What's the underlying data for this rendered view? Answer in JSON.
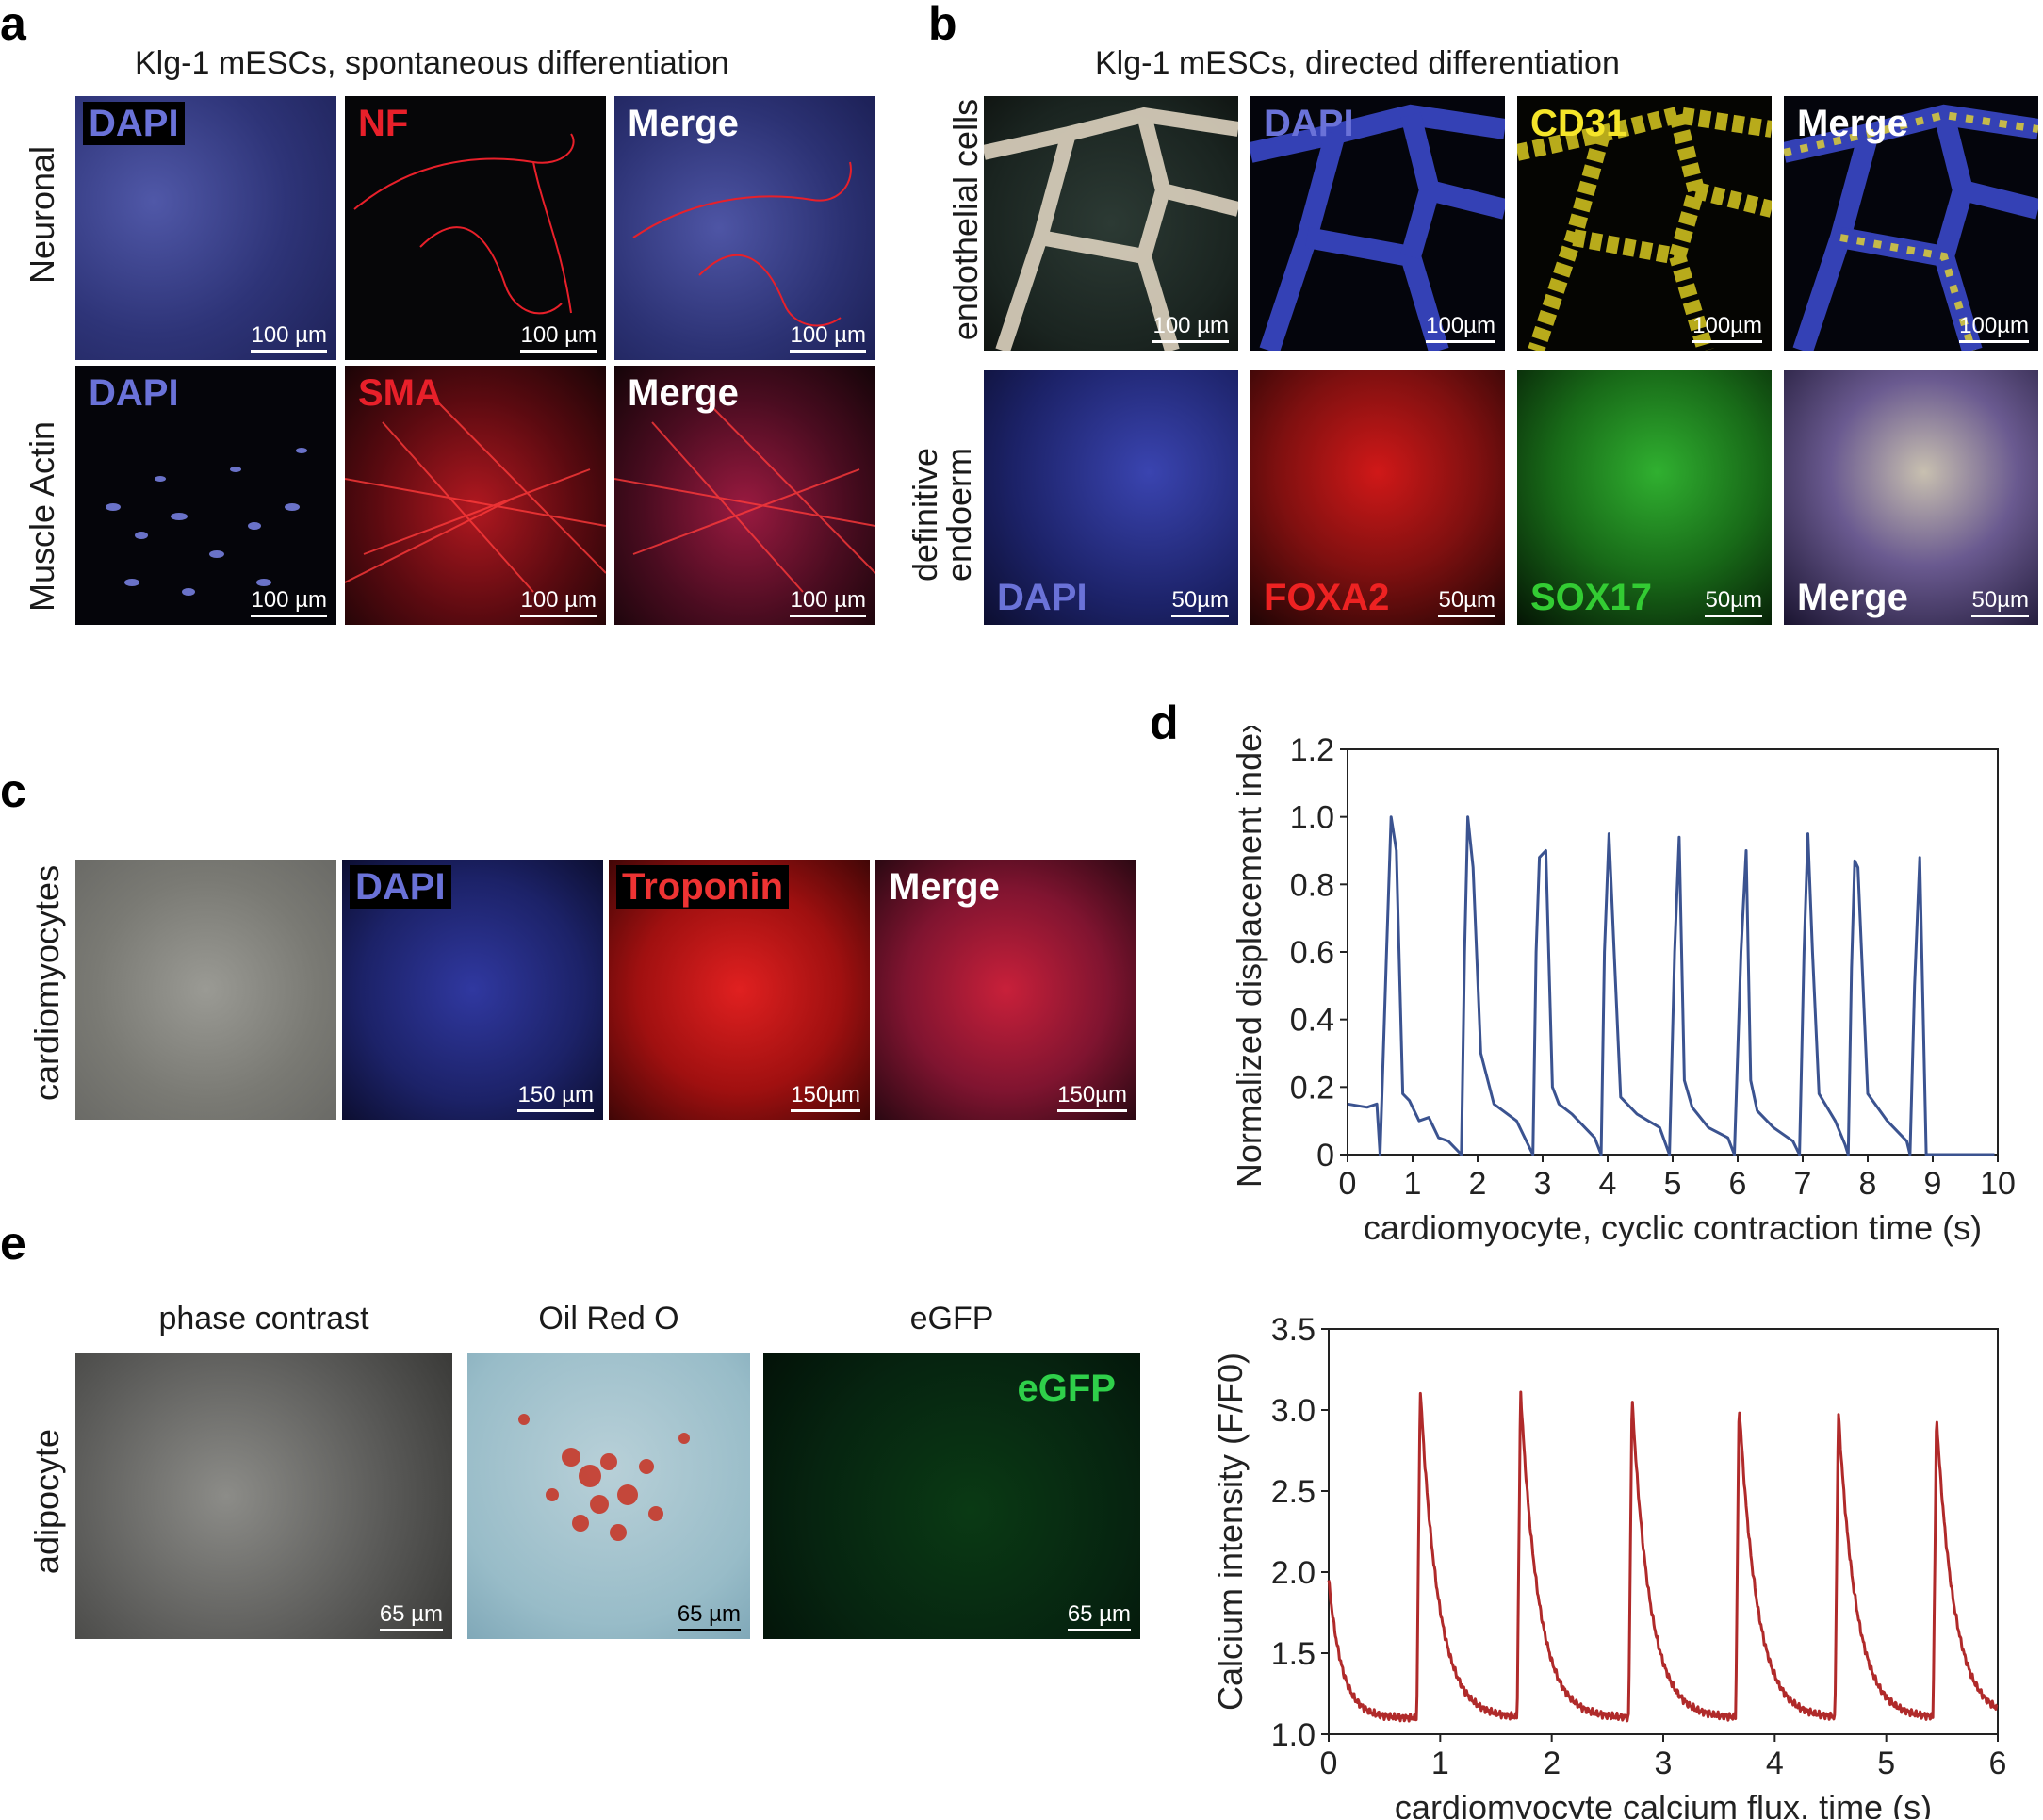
{
  "panels": {
    "a": {
      "label": "a",
      "title": "Klg-1 mESCs, spontaneous differentiation",
      "rows": [
        {
          "label": "Neuronal",
          "tiles": [
            {
              "channel": "DAPI",
              "scale": "100 µm"
            },
            {
              "channel": "NF",
              "scale": "100 µm"
            },
            {
              "channel": "Merge",
              "scale": "100 µm"
            }
          ]
        },
        {
          "label": "Muscle Actin",
          "tiles": [
            {
              "channel": "DAPI",
              "scale": "100 µm"
            },
            {
              "channel": "SMA",
              "scale": "100 µm"
            },
            {
              "channel": "Merge",
              "scale": "100 µm"
            }
          ]
        }
      ]
    },
    "b": {
      "label": "b",
      "title": "Klg-1 mESCs, directed differentiation",
      "rows": [
        {
          "label_line1": "endothelial cells",
          "tiles": [
            {
              "channel": "",
              "scale": "100 µm"
            },
            {
              "channel": "DAPI",
              "scale": "100µm"
            },
            {
              "channel": "CD31",
              "scale": "100µm"
            },
            {
              "channel": "Merge",
              "scale": "100µm"
            }
          ]
        },
        {
          "label_line1": "definitive",
          "label_line2": "endoerm",
          "tiles": [
            {
              "channel": "DAPI",
              "scale": "50µm"
            },
            {
              "channel": "FOXA2",
              "scale": "50µm"
            },
            {
              "channel": "SOX17",
              "scale": "50µm"
            },
            {
              "channel": "Merge",
              "scale": "50µm"
            }
          ]
        }
      ]
    },
    "c": {
      "label": "c",
      "row_label": "cardiomyocytes",
      "tiles": [
        {
          "channel": "",
          "scale": ""
        },
        {
          "channel": "DAPI",
          "scale": "150 µm"
        },
        {
          "channel": "Troponin",
          "scale": "150µm"
        },
        {
          "channel": "Merge",
          "scale": "150µm"
        }
      ]
    },
    "d": {
      "label": "d"
    },
    "e": {
      "label": "e",
      "row_label": "adipocyte",
      "columns": [
        {
          "title": "phase contrast",
          "scale": "65 µm"
        },
        {
          "title": "Oil Red O",
          "scale": "65 µm"
        },
        {
          "title": "eGFP",
          "channel": "eGFP",
          "scale": "65 µm"
        }
      ]
    }
  },
  "colors": {
    "dapi": "#6a72d8",
    "nf": "#e8202a",
    "sma": "#e8202a",
    "cd31": "#f5e52a",
    "foxa2": "#ee2222",
    "sox17": "#33cc33",
    "egfp": "#2fd04a",
    "troponin": "#ee3333",
    "line_blue": "#3b5390",
    "line_red": "#b02a2a"
  },
  "chart_data": [
    {
      "type": "line",
      "title": "",
      "xlabel": "cardiomyocyte, cyclic contraction time (s)",
      "ylabel": "Normalized displacement index",
      "xlim": [
        0,
        10
      ],
      "ylim": [
        0,
        1.2
      ],
      "xticks": [
        "0",
        "1",
        "2",
        "3",
        "4",
        "5",
        "6",
        "7",
        "8",
        "9",
        "10"
      ],
      "yticks": [
        "0",
        "0.2",
        "0.4",
        "0.6",
        "0.8",
        "1.0",
        "1.2"
      ],
      "series": [
        {
          "x": [
            0.0,
            0.3,
            0.45,
            0.5,
            0.6,
            0.67,
            0.75,
            0.85,
            0.95,
            1.1,
            1.25,
            1.4,
            1.55,
            1.75,
            1.8,
            1.85,
            1.93,
            2.05,
            2.25,
            2.6,
            2.85,
            2.9,
            2.95,
            3.05,
            3.15,
            3.25,
            3.45,
            3.8,
            3.9,
            3.95,
            4.02,
            4.1,
            4.2,
            4.45,
            4.8,
            4.95,
            5.03,
            5.1,
            5.18,
            5.3,
            5.55,
            5.85,
            5.95,
            6.05,
            6.13,
            6.2,
            6.3,
            6.55,
            6.85,
            6.95,
            7.02,
            7.08,
            7.15,
            7.25,
            7.5,
            7.65,
            7.7,
            7.75,
            7.8,
            7.85,
            8.0,
            8.3,
            8.6,
            8.65,
            8.72,
            8.8,
            8.9,
            9.1,
            9.4,
            9.75,
            9.8,
            9.85,
            9.92,
            9.95
          ],
          "y": [
            0.15,
            0.14,
            0.15,
            0.0,
            0.6,
            1.0,
            0.9,
            0.18,
            0.16,
            0.1,
            0.11,
            0.05,
            0.04,
            0.0,
            0.6,
            1.0,
            0.85,
            0.3,
            0.15,
            0.1,
            0.0,
            0.6,
            0.88,
            0.9,
            0.2,
            0.15,
            0.12,
            0.05,
            0.0,
            0.6,
            0.95,
            0.6,
            0.17,
            0.12,
            0.08,
            0.0,
            0.6,
            0.94,
            0.22,
            0.14,
            0.08,
            0.05,
            0.0,
            0.6,
            0.9,
            0.22,
            0.13,
            0.08,
            0.04,
            0.0,
            0.6,
            0.95,
            0.6,
            0.18,
            0.1,
            0.03,
            0.0,
            0.55,
            0.87,
            0.85,
            0.18,
            0.1,
            0.04,
            0.0,
            0.5,
            0.88,
            0.0,
            0.0,
            0.0,
            0.0,
            0.0,
            0.0,
            0.0,
            0.0
          ]
        }
      ]
    },
    {
      "type": "line",
      "title": "",
      "xlabel": "cardiomyocyte calcium flux, time (s)",
      "ylabel": "Calcium intensity (F/F0)",
      "xlim": [
        0,
        6
      ],
      "ylim": [
        1.0,
        3.5
      ],
      "xticks": [
        "0",
        "1",
        "2",
        "3",
        "4",
        "5",
        "6"
      ],
      "yticks": [
        "1.0",
        "1.5",
        "2.0",
        "2.5",
        "3.0",
        "3.5"
      ],
      "peaks": [
        {
          "t": 0.82,
          "peak": 3.15
        },
        {
          "t": 1.72,
          "peak": 3.13
        },
        {
          "t": 2.72,
          "peak": 3.08
        },
        {
          "t": 3.68,
          "peak": 3.05
        },
        {
          "t": 4.57,
          "peak": 3.0
        },
        {
          "t": 5.45,
          "peak": 2.97
        }
      ],
      "baseline": 1.1,
      "start_value": 1.95
    }
  ]
}
